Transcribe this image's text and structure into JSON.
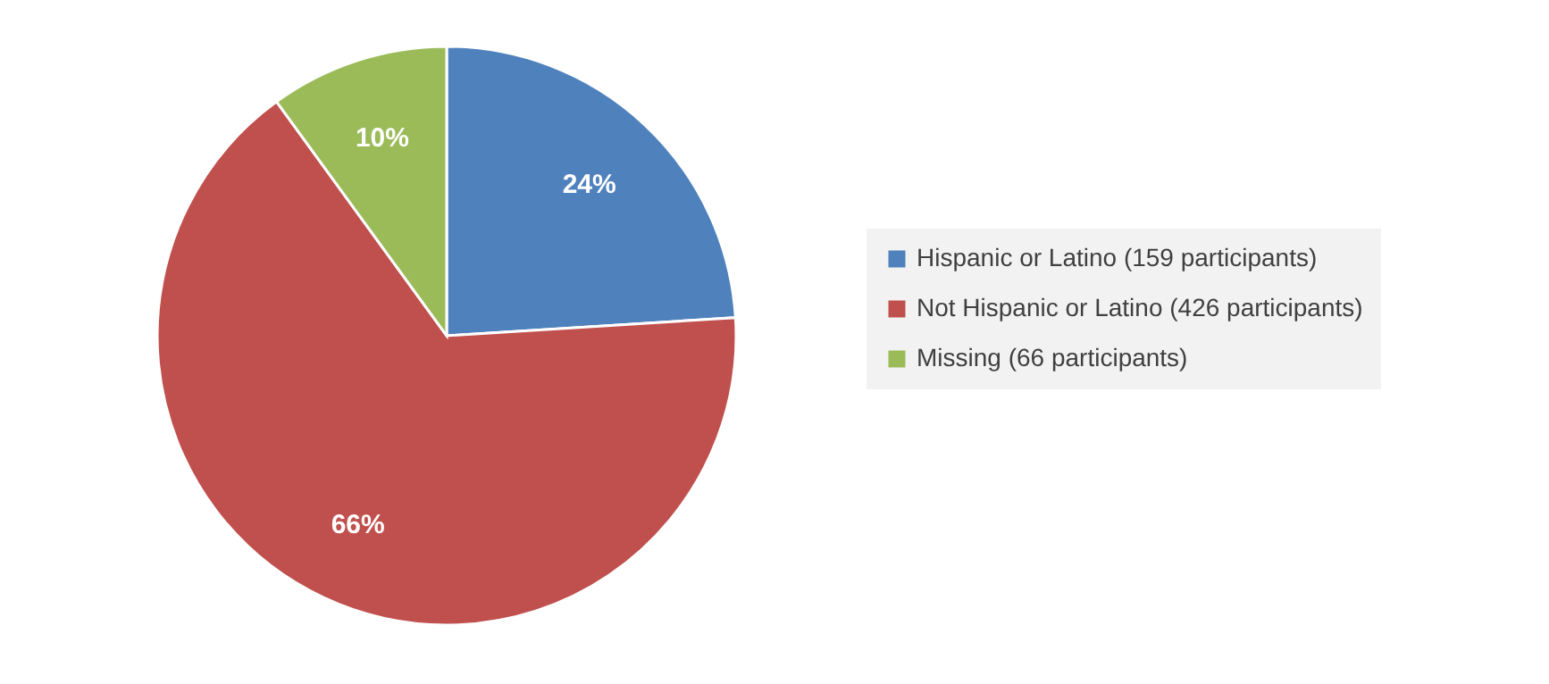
{
  "chart_data": {
    "type": "pie",
    "categories": [
      "Hispanic or Latino (159 participants)",
      "Not Hispanic or Latino (426 participants)",
      "Missing (66 participants)"
    ],
    "values": [
      24,
      66,
      10
    ],
    "value_labels": [
      "24%",
      "66%",
      "10%"
    ],
    "colors": [
      "#4f81bd",
      "#c0504d",
      "#9bbb59"
    ],
    "legend": "right"
  }
}
